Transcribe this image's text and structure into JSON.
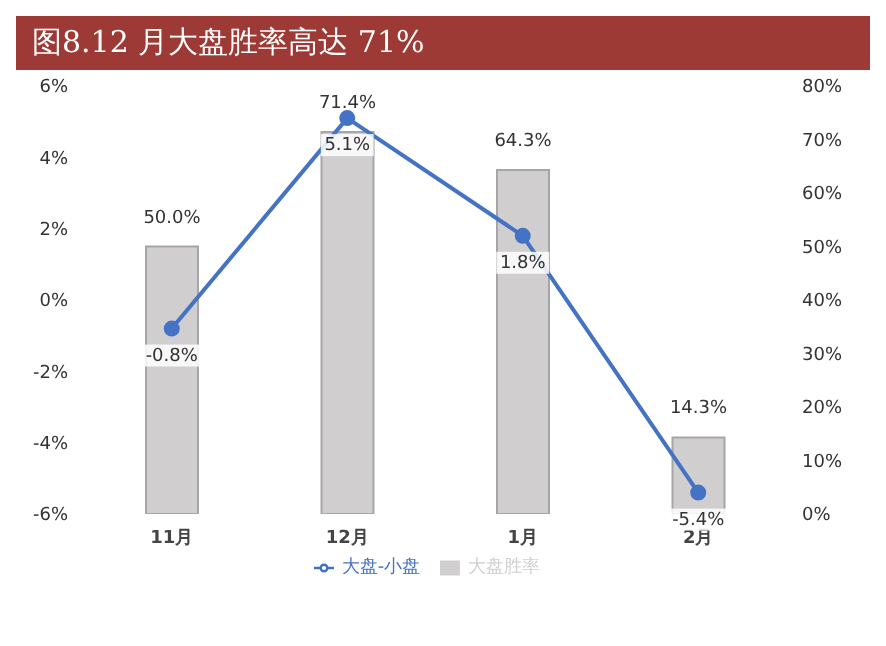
{
  "chart_data": {
    "type": "bar",
    "title": "图8.12 月大盘胜率高达 71%",
    "categories": [
      "11月",
      "12月",
      "1月",
      "2月"
    ],
    "series": [
      {
        "name": "大盘胜率",
        "axis": "y2",
        "color": "#d0cece",
        "values": [
          50.0,
          71.4,
          64.3,
          14.3
        ],
        "value_labels": [
          "50.0%",
          "71.4%",
          "64.3%",
          "14.3%"
        ]
      },
      {
        "name": "大盘-小盘",
        "type": "line",
        "color": "#4472c4",
        "values": [
          -0.8,
          5.1,
          1.8,
          -5.4
        ],
        "value_labels": [
          "-0.8%",
          "5.1%",
          "1.8%",
          "-5.4%"
        ],
        "marker": "circle"
      }
    ],
    "ylim": [
      -6,
      6
    ],
    "yticks": [
      {
        "value": -6,
        "label": "-6%"
      },
      {
        "value": -4,
        "label": "-4%"
      },
      {
        "value": -2,
        "label": "-2%"
      },
      {
        "value": 0,
        "label": "0%"
      },
      {
        "value": 2,
        "label": "2%"
      },
      {
        "value": 4,
        "label": "4%"
      },
      {
        "value": 6,
        "label": "6%"
      }
    ],
    "y2lim": [
      0,
      80
    ],
    "y2ticks": [
      {
        "value": 0,
        "label": "0%"
      },
      {
        "value": 10,
        "label": "10%"
      },
      {
        "value": 20,
        "label": "20%"
      },
      {
        "value": 30,
        "label": "30%"
      },
      {
        "value": 40,
        "label": "40%"
      },
      {
        "value": 50,
        "label": "50%"
      },
      {
        "value": 60,
        "label": "60%"
      },
      {
        "value": 70,
        "label": "70%"
      },
      {
        "value": 80,
        "label": "80%"
      }
    ],
    "grid": false,
    "legend": "bottom"
  }
}
